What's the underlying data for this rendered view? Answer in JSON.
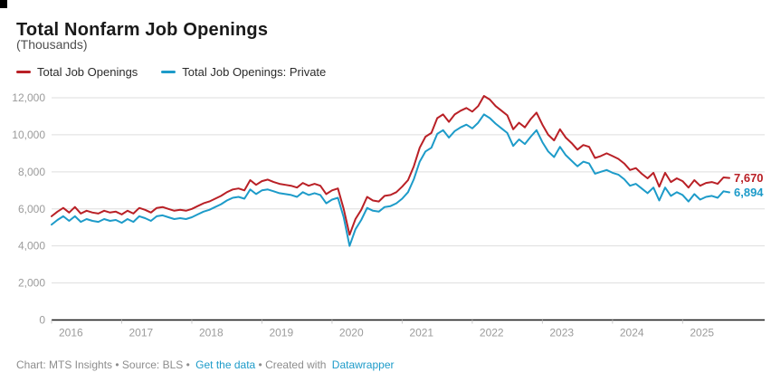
{
  "header": {
    "title": "Total Nonfarm Job Openings",
    "subtitle": "(Thousands)"
  },
  "legend": [
    {
      "label": "Total Job Openings",
      "color": "#b92026",
      "icon": "line-swatch"
    },
    {
      "label": "Total Job Openings: Private",
      "color": "#1d9bc9",
      "icon": "line-swatch"
    }
  ],
  "footer": {
    "prefix": "Chart: MTS Insights • Source: BLS •",
    "get_data_label": "Get the data",
    "middle": "• Created with",
    "datawrapper_label": "Datawrapper"
  },
  "chart_data": {
    "type": "line",
    "title": "Total Nonfarm Job Openings",
    "unit": "Thousands",
    "x_frequency": "monthly",
    "x_start": "2016-01",
    "x_end": "2025-09",
    "x_tick_labels": [
      "2016",
      "2017",
      "2018",
      "2019",
      "2020",
      "2021",
      "2022",
      "2023",
      "2024",
      "2025"
    ],
    "y_ticks": [
      0,
      2000,
      4000,
      6000,
      8000,
      10000,
      12000
    ],
    "ylim": [
      0,
      12000
    ],
    "grid": "horizontal",
    "legend_position": "top",
    "series": [
      {
        "name": "Total Job Openings",
        "color": "#b92026",
        "end_label": "7,670",
        "end_value": 7670,
        "values": [
          5600,
          5850,
          6050,
          5800,
          6100,
          5750,
          5900,
          5800,
          5750,
          5900,
          5800,
          5850,
          5700,
          5900,
          5750,
          6050,
          5950,
          5800,
          6050,
          6100,
          6000,
          5900,
          5950,
          5900,
          6000,
          6150,
          6300,
          6400,
          6550,
          6700,
          6900,
          7050,
          7100,
          7000,
          7550,
          7300,
          7500,
          7580,
          7450,
          7350,
          7300,
          7250,
          7150,
          7400,
          7250,
          7350,
          7250,
          6800,
          7000,
          7100,
          6000,
          4600,
          5450,
          5950,
          6650,
          6450,
          6400,
          6700,
          6750,
          6900,
          7200,
          7550,
          8300,
          9300,
          9900,
          10100,
          10900,
          11100,
          10700,
          11100,
          11300,
          11450,
          11250,
          11550,
          12100,
          11900,
          11550,
          11300,
          11050,
          10300,
          10650,
          10400,
          10850,
          11200,
          10550,
          10000,
          9700,
          10300,
          9850,
          9550,
          9200,
          9450,
          9350,
          8750,
          8850,
          9000,
          8850,
          8700,
          8450,
          8100,
          8200,
          7900,
          7650,
          7950,
          7200,
          7950,
          7450,
          7650,
          7500,
          7150,
          7550,
          7250,
          7400,
          7450,
          7350,
          7700,
          7670
        ]
      },
      {
        "name": "Total Job Openings: Private",
        "color": "#1d9bc9",
        "end_label": "6,894",
        "end_value": 6894,
        "values": [
          5150,
          5400,
          5600,
          5350,
          5600,
          5300,
          5450,
          5350,
          5300,
          5450,
          5350,
          5400,
          5250,
          5450,
          5300,
          5600,
          5500,
          5350,
          5600,
          5650,
          5550,
          5450,
          5500,
          5450,
          5550,
          5700,
          5850,
          5950,
          6100,
          6250,
          6450,
          6600,
          6650,
          6550,
          7050,
          6800,
          7000,
          7050,
          6950,
          6850,
          6800,
          6750,
          6650,
          6900,
          6750,
          6850,
          6750,
          6300,
          6500,
          6600,
          5550,
          4000,
          4900,
          5400,
          6050,
          5900,
          5850,
          6100,
          6150,
          6300,
          6550,
          6900,
          7600,
          8550,
          9100,
          9300,
          10050,
          10250,
          9850,
          10200,
          10400,
          10550,
          10350,
          10650,
          11100,
          10900,
          10600,
          10350,
          10100,
          9400,
          9750,
          9500,
          9900,
          10250,
          9600,
          9100,
          8800,
          9350,
          8900,
          8600,
          8300,
          8550,
          8450,
          7900,
          8000,
          8100,
          7950,
          7850,
          7600,
          7250,
          7350,
          7100,
          6850,
          7150,
          6450,
          7150,
          6700,
          6900,
          6750,
          6400,
          6800,
          6500,
          6650,
          6700,
          6600,
          6950,
          6894
        ]
      }
    ]
  }
}
